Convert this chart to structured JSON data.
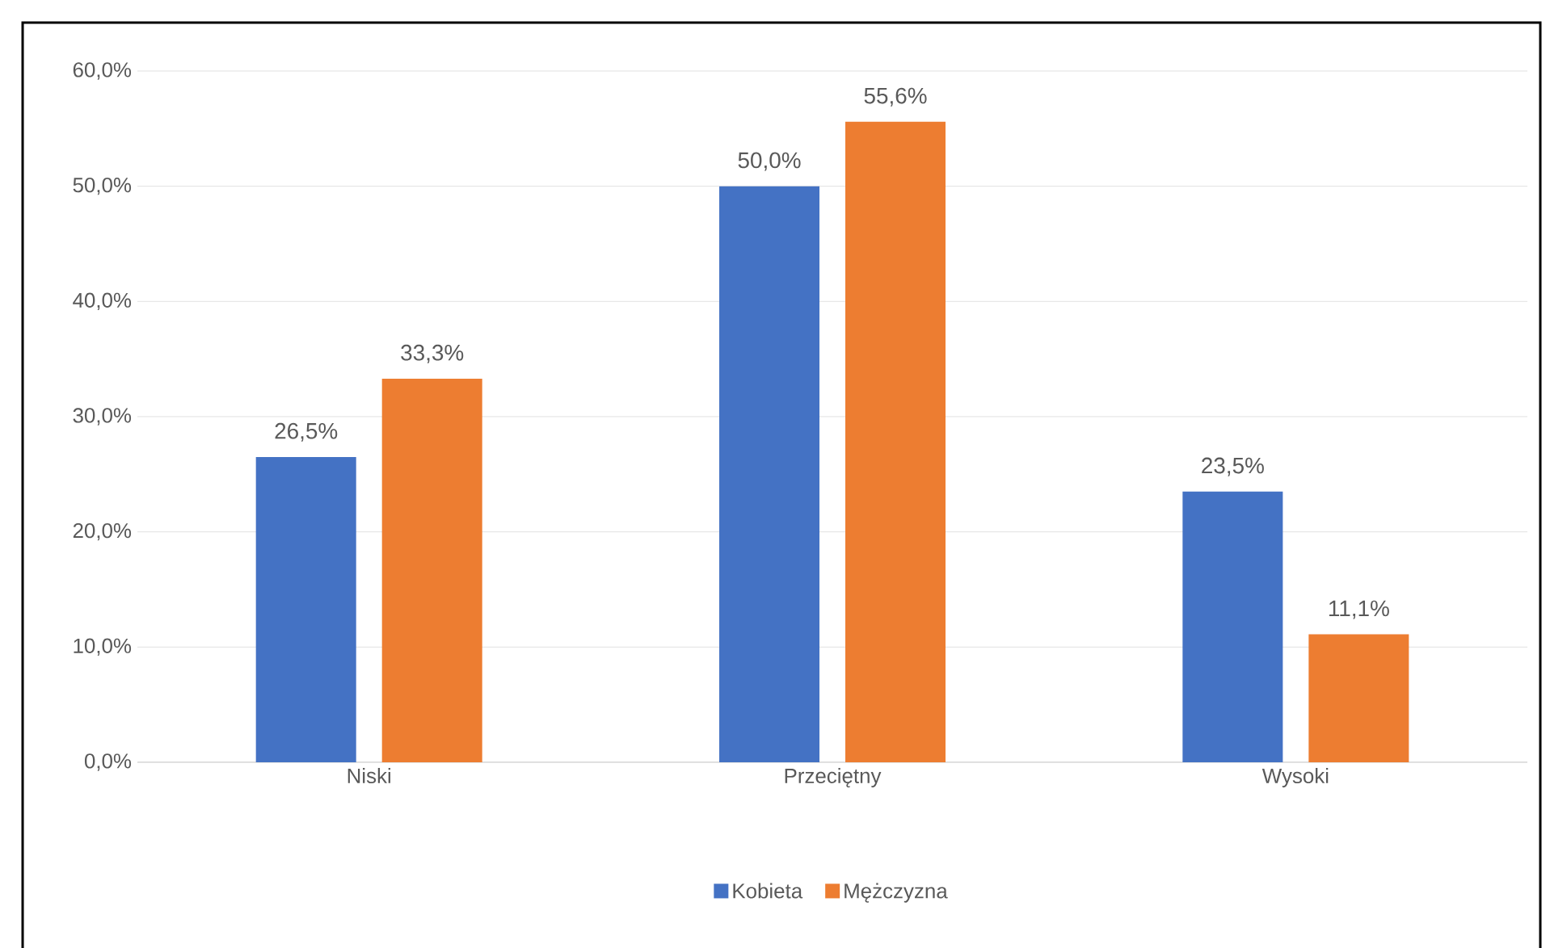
{
  "chart_data": {
    "type": "bar",
    "categories": [
      "Niski",
      "Przeciętny",
      "Wysoki"
    ],
    "series": [
      {
        "name": "Kobieta",
        "color": "#4472c4",
        "values": [
          26.5,
          50.0,
          23.5
        ],
        "value_labels": [
          "26,5%",
          "50,0%",
          "23,5%"
        ]
      },
      {
        "name": "Mężczyzna",
        "color": "#ed7d31",
        "values": [
          33.3,
          55.6,
          11.1
        ],
        "value_labels": [
          "33,3%",
          "55,6%",
          "11,1%"
        ]
      }
    ],
    "ylim": [
      0,
      60
    ],
    "yticks": [
      {
        "value": 0,
        "label": "0,0%"
      },
      {
        "value": 10,
        "label": "10,0%"
      },
      {
        "value": 20,
        "label": "20,0%"
      },
      {
        "value": 30,
        "label": "30,0%"
      },
      {
        "value": 40,
        "label": "40,0%"
      },
      {
        "value": 50,
        "label": "50,0%"
      },
      {
        "value": 60,
        "label": "60,0%"
      }
    ],
    "grid": "y",
    "legend": "bottom"
  }
}
